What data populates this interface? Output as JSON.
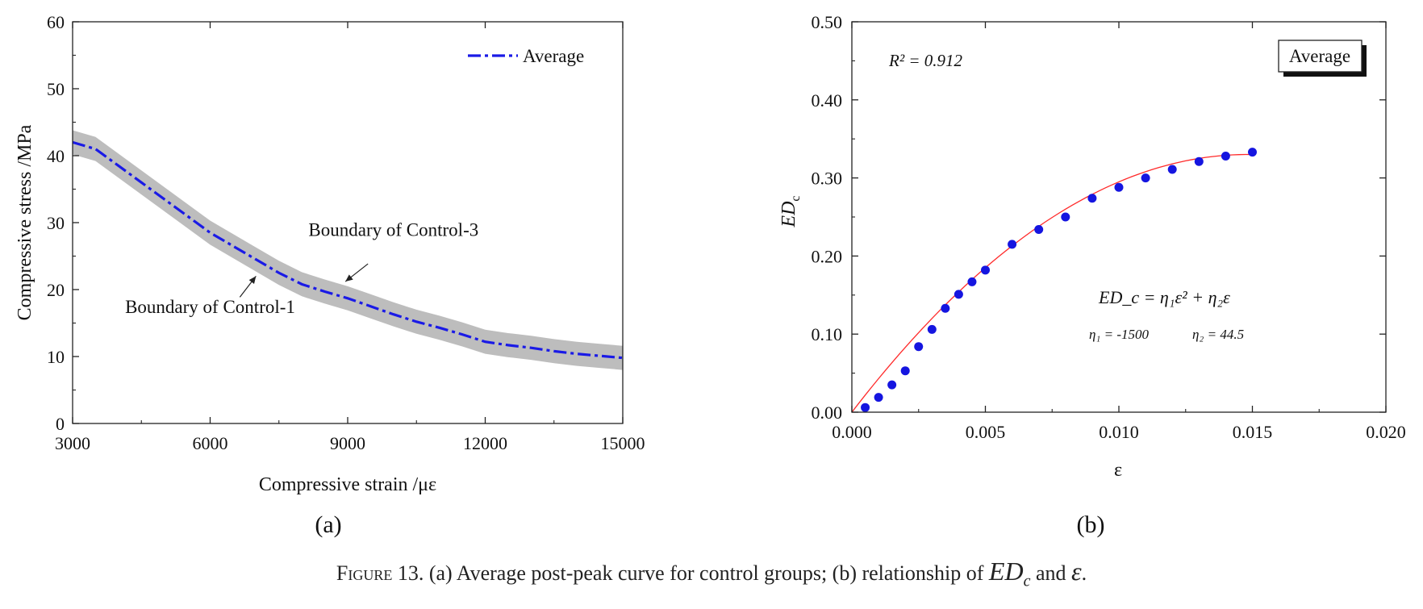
{
  "chart_data": [
    {
      "panel_label": "(a)",
      "type": "line",
      "xlabel": "Compressive strain /με",
      "ylabel": "Compressive stress /MPa",
      "xlim": [
        3000,
        15000
      ],
      "ylim": [
        0,
        60
      ],
      "xticks": [
        "3000",
        "6000",
        "9000",
        "12000",
        "15000"
      ],
      "yticks": [
        "0",
        "10",
        "20",
        "30",
        "40",
        "50",
        "60"
      ],
      "legend": {
        "placement": "top-right",
        "entries": [
          "Average"
        ]
      },
      "series": [
        {
          "name": "Average",
          "style": "dash-dot",
          "color": "#1a1ae6",
          "x": [
            3000,
            3500,
            4000,
            4500,
            5000,
            5500,
            6000,
            6500,
            7000,
            7500,
            8000,
            8500,
            9000,
            9500,
            10000,
            10500,
            11000,
            11500,
            12000,
            12500,
            13000,
            13500,
            14000,
            14500,
            15000
          ],
          "y": [
            42,
            41,
            38.5,
            36,
            33.5,
            31,
            28.5,
            26.5,
            24.5,
            22.5,
            20.8,
            19.7,
            18.7,
            17.5,
            16.3,
            15.2,
            14.3,
            13.3,
            12.2,
            11.7,
            11.3,
            10.8,
            10.4,
            10.1,
            9.8
          ]
        }
      ],
      "band": {
        "color": "#bdbdbd",
        "half_width": 1.8
      },
      "annotations": [
        {
          "text": "Boundary of Control-3",
          "x": 10000,
          "y": 28,
          "arrow_to": [
            8950,
            21.2
          ]
        },
        {
          "text": "Boundary of Control-1",
          "x": 6000,
          "y": 16.5,
          "arrow_to": [
            7000,
            22
          ]
        }
      ],
      "grid": false
    },
    {
      "panel_label": "(b)",
      "type": "scatter",
      "xlabel": "ε",
      "ylabel": "ED",
      "ylabel_sub": "c",
      "xlim": [
        0,
        0.02
      ],
      "ylim": [
        0,
        0.5
      ],
      "xticks": [
        "0.000",
        "0.005",
        "0.010",
        "0.015",
        "0.020"
      ],
      "yticks": [
        "0.00",
        "0.10",
        "0.20",
        "0.30",
        "0.40",
        "0.50"
      ],
      "legend": {
        "placement": "top-right",
        "entries": [
          "Average"
        ]
      },
      "r2_text": "R² = 0.912",
      "equation": "ED_c = η₁ε² + η₂ε",
      "params": [
        "η₁ = -1500",
        "η₂ = 44.5"
      ],
      "series": [
        {
          "name": "Average",
          "color": "#1515e0",
          "x": [
            0.0005,
            0.001,
            0.0015,
            0.002,
            0.0025,
            0.003,
            0.0035,
            0.004,
            0.0045,
            0.005,
            0.006,
            0.007,
            0.008,
            0.009,
            0.01,
            0.011,
            0.012,
            0.013,
            0.014,
            0.015
          ],
          "y": [
            0.006,
            0.019,
            0.035,
            0.053,
            0.084,
            0.106,
            0.133,
            0.151,
            0.167,
            0.182,
            0.215,
            0.234,
            0.25,
            0.274,
            0.288,
            0.3,
            0.311,
            0.321,
            0.328,
            0.333
          ]
        }
      ],
      "fit": {
        "color": "#ff2a2a",
        "eta1": -1500,
        "eta2": 44.5,
        "x_max": 0.015
      },
      "grid": false
    }
  ],
  "caption": {
    "prefix": "Figure 13.",
    "text": " (a) Average post-peak curve for control groups; (b) relationship of ",
    "sym1": "ED",
    "sym1_sub": "c",
    "and": " and ",
    "sym2": "ε",
    "end": "."
  }
}
